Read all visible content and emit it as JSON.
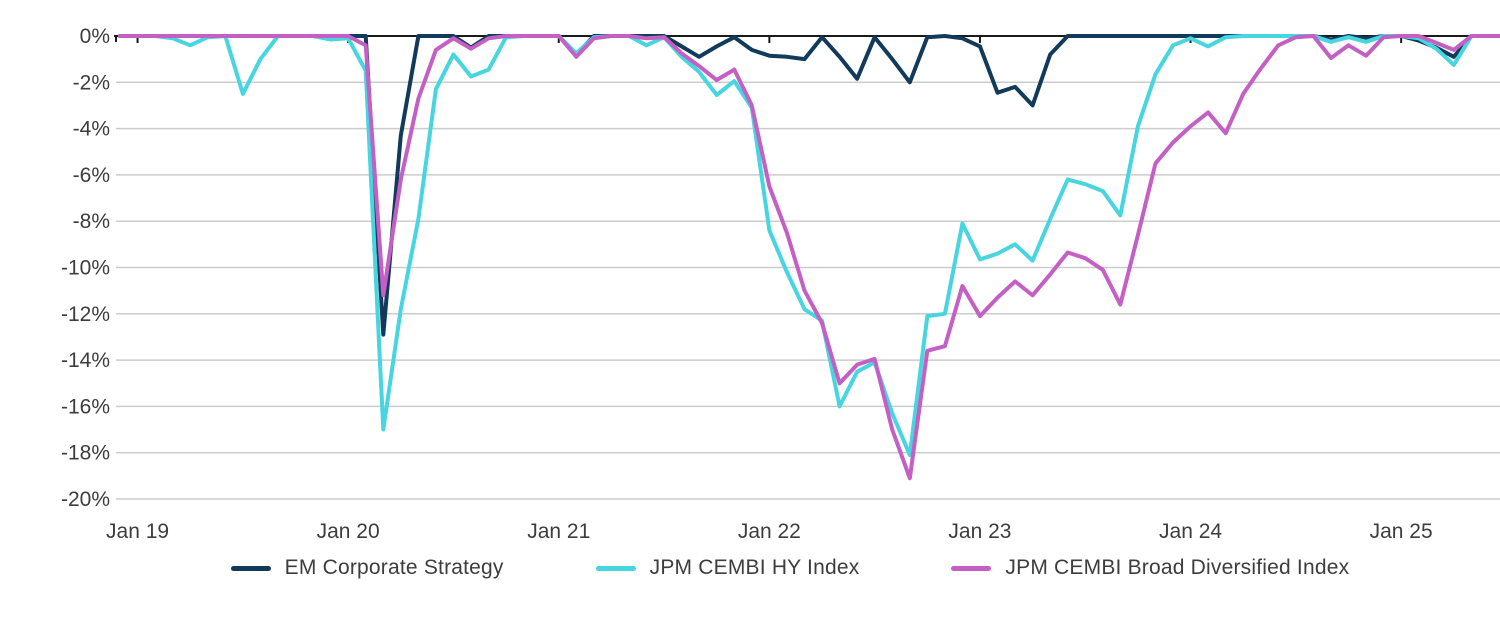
{
  "chart_data": {
    "type": "line",
    "title": "",
    "xlabel": "",
    "ylabel": "",
    "ylim": [
      -20,
      0
    ],
    "grid": true,
    "legend_position": "bottom",
    "y_tick_labels": [
      "0%",
      "-2%",
      "-4%",
      "-6%",
      "-8%",
      "-10%",
      "-12%",
      "-14%",
      "-16%",
      "-18%",
      "-20%"
    ],
    "x_tick_labels": [
      "Jan 19",
      "Jan 20",
      "Jan 21",
      "Jan 22",
      "Jan 23",
      "Jan 24",
      "Jan 25"
    ],
    "x_tick_month_index": [
      1,
      13,
      25,
      37,
      49,
      61,
      73
    ],
    "x": [
      "Dec 18",
      "Jan 19",
      "Feb 19",
      "Mar 19",
      "Apr 19",
      "May 19",
      "Jun 19",
      "Jul 19",
      "Aug 19",
      "Sep 19",
      "Oct 19",
      "Nov 19",
      "Dec 19",
      "Jan 20",
      "Feb 20",
      "Mar 20",
      "Apr 20",
      "May 20",
      "Jun 20",
      "Jul 20",
      "Aug 20",
      "Sep 20",
      "Oct 20",
      "Nov 20",
      "Dec 20",
      "Jan 21",
      "Feb 21",
      "Mar 21",
      "Apr 21",
      "May 21",
      "Jun 21",
      "Jul 21",
      "Aug 21",
      "Sep 21",
      "Oct 21",
      "Nov 21",
      "Dec 21",
      "Jan 22",
      "Feb 22",
      "Mar 22",
      "Apr 22",
      "May 22",
      "Jun 22",
      "Jul 22",
      "Aug 22",
      "Sep 22",
      "Oct 22",
      "Nov 22",
      "Dec 22",
      "Jan 23",
      "Feb 23",
      "Mar 23",
      "Apr 23",
      "May 23",
      "Jun 23",
      "Jul 23",
      "Aug 23",
      "Sep 23",
      "Oct 23",
      "Nov 23",
      "Dec 23",
      "Jan 24",
      "Feb 24",
      "Mar 24",
      "Apr 24",
      "May 24",
      "Jun 24",
      "Jul 24",
      "Aug 24",
      "Sep 24",
      "Oct 24",
      "Nov 24",
      "Dec 24",
      "Jan 25",
      "Feb 25",
      "Mar 25",
      "Apr 25",
      "May 25",
      "Jun 25",
      "Jul 25",
      "Aug 25"
    ],
    "series": [
      {
        "name": "EM Corporate Strategy",
        "color": "#123a5b",
        "values": [
          0,
          0,
          0,
          0,
          0,
          0,
          0,
          0,
          0,
          0,
          0,
          0,
          0,
          0,
          0,
          -12.9,
          -4.3,
          0,
          0,
          0,
          -0.5,
          0,
          0,
          0,
          0,
          0,
          -0.8,
          0,
          0,
          0,
          0,
          0,
          -0.45,
          -0.9,
          -0.45,
          -0.05,
          -0.6,
          -0.85,
          -0.9,
          -1.0,
          -0.05,
          -0.9,
          -1.85,
          -0.05,
          -1.0,
          -2.0,
          -0.05,
          0,
          -0.1,
          -0.45,
          -2.45,
          -2.2,
          -3.0,
          -0.8,
          0,
          0,
          0,
          0,
          0,
          0,
          0,
          0,
          0,
          0,
          0,
          0,
          0,
          0,
          0,
          -0.15,
          0,
          -0.1,
          0,
          0,
          -0.2,
          -0.5,
          -0.9,
          0,
          0,
          0,
          0
        ]
      },
      {
        "name": "JPM CEMBI HY Index",
        "color": "#47d5e0",
        "values": [
          0,
          0,
          0,
          -0.1,
          -0.4,
          -0.05,
          0,
          -2.5,
          -1.0,
          0,
          0,
          0,
          -0.15,
          -0.1,
          -1.5,
          -17.0,
          -11.8,
          -7.9,
          -2.3,
          -0.8,
          -1.75,
          -1.45,
          -0.05,
          0,
          0,
          0,
          -0.75,
          -0.05,
          0,
          0,
          -0.4,
          -0.05,
          -0.9,
          -1.55,
          -2.55,
          -1.95,
          -3.1,
          -8.4,
          -10.2,
          -11.8,
          -12.3,
          -16.0,
          -14.5,
          -14.1,
          -16.3,
          -18.1,
          -12.1,
          -12.0,
          -8.1,
          -9.65,
          -9.4,
          -9.0,
          -9.7,
          -7.9,
          -6.2,
          -6.4,
          -6.7,
          -7.75,
          -3.9,
          -1.65,
          -0.4,
          -0.1,
          -0.45,
          -0.05,
          0,
          0,
          0,
          0,
          0,
          -0.25,
          -0.05,
          -0.25,
          0,
          0,
          -0.1,
          -0.55,
          -1.25,
          0,
          0,
          0,
          0
        ]
      },
      {
        "name": "JPM CEMBI Broad Diversified Index",
        "color": "#c45fc4",
        "values": [
          0,
          0,
          0,
          0,
          0,
          0,
          0,
          0,
          0,
          0,
          0,
          0,
          0,
          0,
          -0.4,
          -11.2,
          -6.2,
          -2.7,
          -0.6,
          -0.1,
          -0.55,
          -0.1,
          0,
          0,
          0,
          0,
          -0.9,
          -0.1,
          0,
          0,
          -0.1,
          -0.05,
          -0.75,
          -1.3,
          -1.9,
          -1.45,
          -3.0,
          -6.5,
          -8.5,
          -11.0,
          -12.4,
          -15.0,
          -14.2,
          -13.95,
          -17.0,
          -19.1,
          -13.6,
          -13.4,
          -10.8,
          -12.1,
          -11.3,
          -10.6,
          -11.2,
          -10.3,
          -9.35,
          -9.6,
          -10.1,
          -11.6,
          -8.6,
          -5.5,
          -4.6,
          -3.9,
          -3.3,
          -4.2,
          -2.5,
          -1.4,
          -0.4,
          -0.05,
          0,
          -0.95,
          -0.4,
          -0.85,
          -0.05,
          0,
          0,
          -0.3,
          -0.6,
          0,
          0,
          0,
          0
        ]
      }
    ]
  },
  "style_colors": {
    "gridline": "#cccccc",
    "zero_axis": "#1a1a1a",
    "tick_label": "#3d3d3d"
  }
}
